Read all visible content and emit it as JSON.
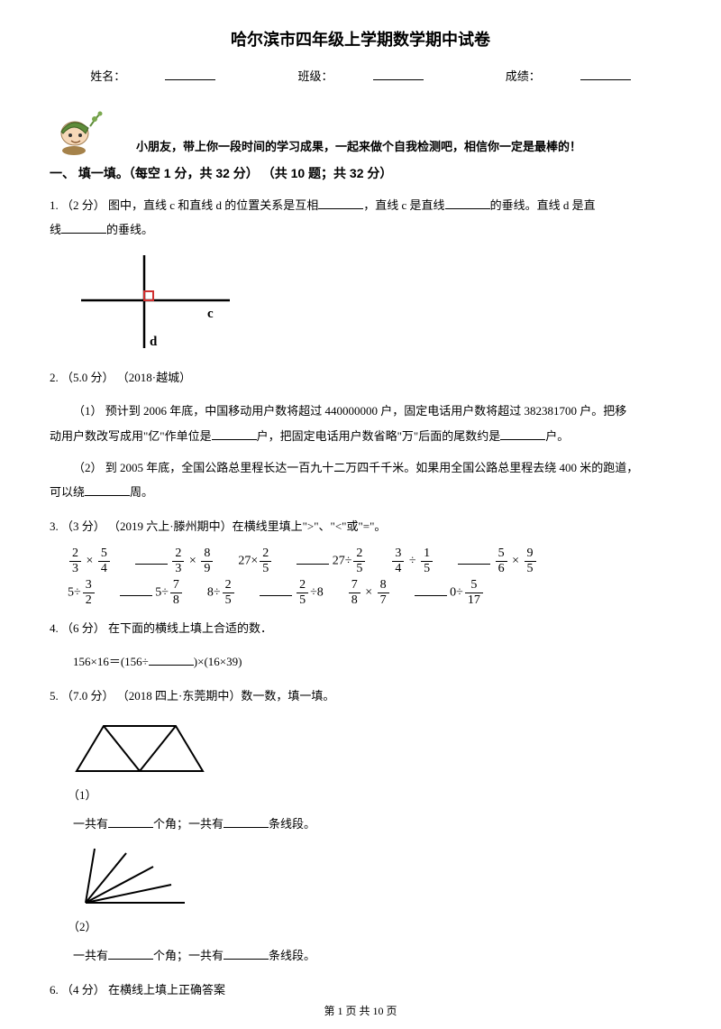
{
  "title": "哈尔滨市四年级上学期数学期中试卷",
  "meta": {
    "name_label": "姓名：",
    "class_label": "班级：",
    "score_label": "成绩："
  },
  "encourage": "小朋友，带上你一段时间的学习成果，一起来做个自我检测吧，相信你一定是最棒的！",
  "section1": "一、 填一填。（每空 1 分，共 32 分） （共 10 题；共 32 分）",
  "q1_a": "1. （2 分） 图中，直线 c 和直线 d 的位置关系是互相",
  "q1_b": "，直线 c 是直线",
  "q1_c": "的垂线。直线 d 是直",
  "q1_d": "线",
  "q1_e": "的垂线。",
  "q2_head": "2. （5.0 分） （2018·越城）",
  "q2_1a": "（1） 预计到 2006 年底，中国移动用户数将超过 440000000 户，固定电话用户数将超过 382381700 户。把移",
  "q2_1b": "动用户数改写成用\"亿\"作单位是",
  "q2_1c": "户，把固定电话用户数省略\"万\"后面的尾数约是",
  "q2_1d": "户。",
  "q2_2a": "（2） 到 2005 年底，全国公路总里程长达一百九十二万四千千米。如果用全国公路总里程去绕 400 米的跑道，",
  "q2_2b": "可以绕",
  "q2_2c": "周。",
  "q3": "3. （3 分） （2019 六上·滕州期中）在横线里填上\">\"、\"<\"或\"=\"。",
  "fracs": {
    "r1": [
      {
        "type": "mul",
        "a": {
          "n": "2",
          "d": "3"
        },
        "b": {
          "n": "5",
          "d": "4"
        }
      },
      {
        "type": "mul",
        "a": {
          "n": "2",
          "d": "3"
        },
        "b": {
          "n": "8",
          "d": "9"
        }
      },
      {
        "type": "left",
        "t": "27×",
        "f": {
          "n": "2",
          "d": "5"
        }
      },
      {
        "type": "left",
        "t": "27÷",
        "f": {
          "n": "2",
          "d": "5"
        }
      },
      {
        "type": "div",
        "a": {
          "n": "3",
          "d": "4"
        },
        "b": {
          "n": "1",
          "d": "5"
        }
      },
      {
        "type": "mul",
        "a": {
          "n": "5",
          "d": "6"
        },
        "b": {
          "n": "9",
          "d": "5"
        }
      }
    ],
    "r2": [
      {
        "type": "left",
        "t": "5÷",
        "f": {
          "n": "3",
          "d": "2"
        }
      },
      {
        "type": "left",
        "t": "5÷",
        "f": {
          "n": "7",
          "d": "8"
        }
      },
      {
        "type": "left",
        "t": "8÷",
        "f": {
          "n": "2",
          "d": "5"
        }
      },
      {
        "type": "right",
        "f": {
          "n": "2",
          "d": "5"
        },
        "t": "÷8"
      },
      {
        "type": "mul",
        "a": {
          "n": "7",
          "d": "8"
        },
        "b": {
          "n": "8",
          "d": "7"
        }
      },
      {
        "type": "left",
        "t": "0÷",
        "f": {
          "n": "5",
          "d": "17"
        }
      }
    ]
  },
  "q4_a": "4. （6 分） 在下面的横线上填上合适的数．",
  "q4_b": "156×16＝(156÷",
  "q4_c": ")×(16×39)",
  "q5": "5. （7.0 分） （2018 四上·东莞期中）数一数，填一填。",
  "q5_sub1": "（1）",
  "q5_sub2": "（2）",
  "q5_counts_a": "一共有",
  "q5_counts_b": "个角；一共有",
  "q5_counts_c": "条线段。",
  "q6": "6. （4 分） 在横线上填上正确答案",
  "footer": "第 1 页 共 10 页",
  "colors": {
    "text": "#000000",
    "bg": "#ffffff",
    "figure_red": "#d03030",
    "green": "#5e8c3a",
    "brown": "#a5824a"
  }
}
